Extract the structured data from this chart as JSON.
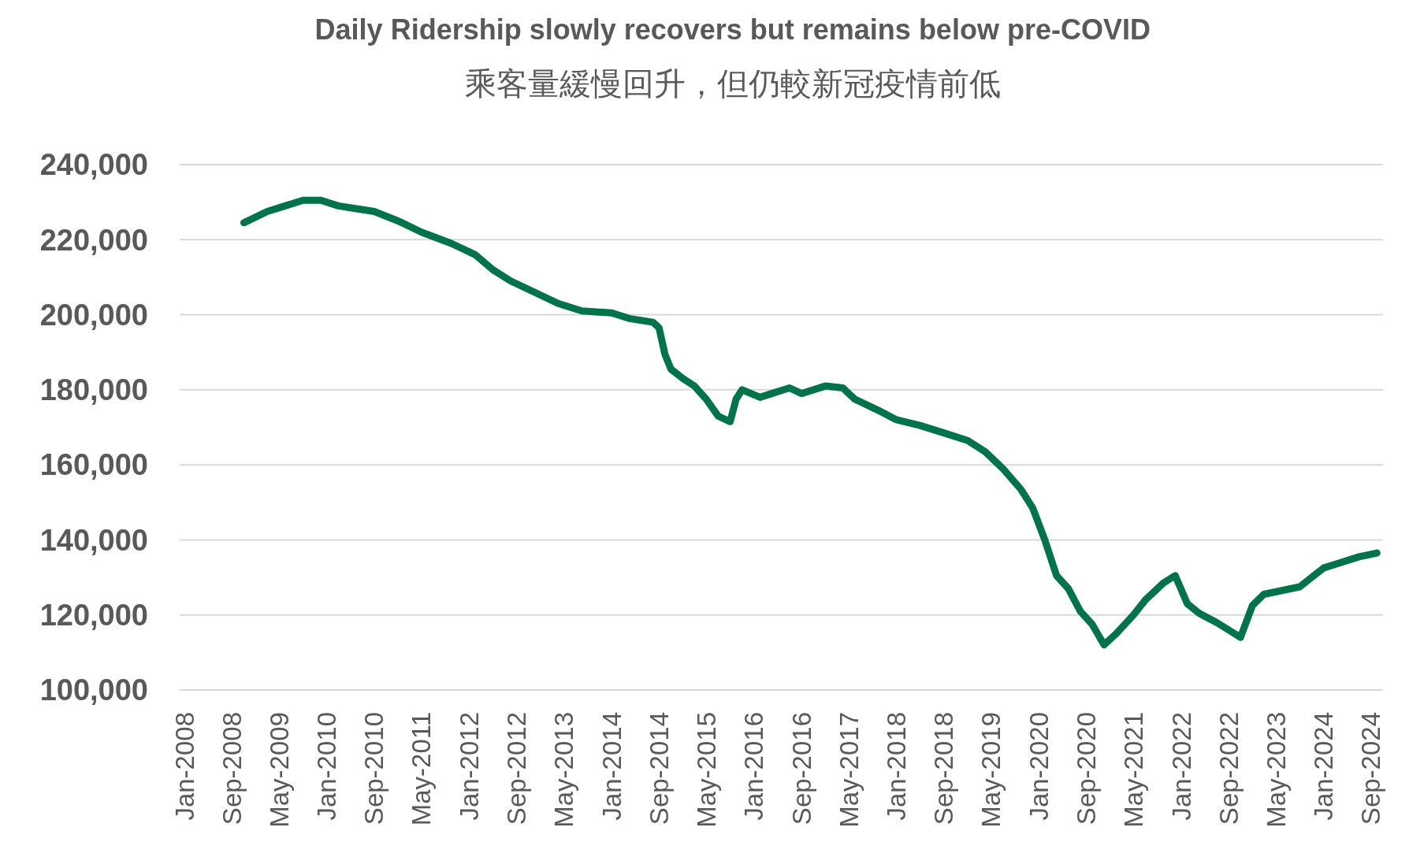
{
  "chart_data": {
    "type": "line",
    "title": "Daily Ridership slowly recovers but remains below pre-COVID",
    "subtitle": "乘客量緩慢回升，但仍較新冠疫情前低",
    "x": [
      "2008-11",
      "2009-03",
      "2009-06",
      "2009-09",
      "2009-12",
      "2010-03",
      "2010-05",
      "2010-09",
      "2011-01",
      "2011-05",
      "2011-10",
      "2012-02",
      "2012-05",
      "2012-08",
      "2012-12",
      "2013-04",
      "2013-08",
      "2014-01",
      "2014-04",
      "2014-08",
      "2014-09",
      "2014-10",
      "2014-11",
      "2015-01",
      "2015-03",
      "2015-05",
      "2015-07",
      "2015-09",
      "2015-10",
      "2015-11",
      "2016-02",
      "2016-04",
      "2016-07",
      "2016-09",
      "2017-01",
      "2017-04",
      "2017-06",
      "2017-10",
      "2018-01",
      "2018-05",
      "2018-09",
      "2019-01",
      "2019-04",
      "2019-07",
      "2019-10",
      "2019-12",
      "2020-02",
      "2020-04",
      "2020-06",
      "2020-08",
      "2020-10",
      "2020-12",
      "2021-02",
      "2021-05",
      "2021-07",
      "2021-09",
      "2021-10",
      "2021-12",
      "2022-02",
      "2022-04",
      "2022-07",
      "2022-09",
      "2022-11",
      "2023-01",
      "2023-03",
      "2023-06",
      "2023-09",
      "2023-11",
      "2024-01",
      "2024-04",
      "2024-07",
      "2024-10"
    ],
    "series": [
      {
        "color": "#00734a",
        "values": [
          224500,
          227500,
          229000,
          230500,
          230500,
          229000,
          228500,
          227500,
          225000,
          222000,
          219000,
          216000,
          212000,
          209000,
          206000,
          203000,
          201000,
          200500,
          199000,
          198000,
          196500,
          189500,
          185500,
          183000,
          181000,
          177500,
          173000,
          171500,
          177500,
          180000,
          178000,
          179000,
          180500,
          179000,
          181000,
          180500,
          177500,
          174500,
          172000,
          170500,
          168500,
          166500,
          163500,
          159000,
          153500,
          148500,
          140000,
          130500,
          127000,
          121000,
          117500,
          112000,
          115000,
          120000,
          124000,
          127000,
          128500,
          130500,
          123000,
          120500,
          118000,
          116000,
          114000,
          122500,
          125500,
          126500,
          127500,
          130000,
          132500,
          134000,
          135500,
          136500
        ]
      }
    ],
    "xlim": [
      "2008-01",
      "2024-11"
    ],
    "xticks": [
      {
        "value": "2008-01",
        "label": "Jan-2008"
      },
      {
        "value": "2008-09",
        "label": "Sep-2008"
      },
      {
        "value": "2009-05",
        "label": "May-2009"
      },
      {
        "value": "2010-01",
        "label": "Jan-2010"
      },
      {
        "value": "2010-09",
        "label": "Sep-2010"
      },
      {
        "value": "2011-05",
        "label": "May-2011"
      },
      {
        "value": "2012-01",
        "label": "Jan-2012"
      },
      {
        "value": "2012-09",
        "label": "Sep-2012"
      },
      {
        "value": "2013-05",
        "label": "May-2013"
      },
      {
        "value": "2014-01",
        "label": "Jan-2014"
      },
      {
        "value": "2014-09",
        "label": "Sep-2014"
      },
      {
        "value": "2015-05",
        "label": "May-2015"
      },
      {
        "value": "2016-01",
        "label": "Jan-2016"
      },
      {
        "value": "2016-09",
        "label": "Sep-2016"
      },
      {
        "value": "2017-05",
        "label": "May-2017"
      },
      {
        "value": "2018-01",
        "label": "Jan-2018"
      },
      {
        "value": "2018-09",
        "label": "Sep-2018"
      },
      {
        "value": "2019-05",
        "label": "May-2019"
      },
      {
        "value": "2020-01",
        "label": "Jan-2020"
      },
      {
        "value": "2020-09",
        "label": "Sep-2020"
      },
      {
        "value": "2021-05",
        "label": "May-2021"
      },
      {
        "value": "2022-01",
        "label": "Jan-2022"
      },
      {
        "value": "2022-09",
        "label": "Sep-2022"
      },
      {
        "value": "2023-05",
        "label": "May-2023"
      },
      {
        "value": "2024-01",
        "label": "Jan-2024"
      },
      {
        "value": "2024-09",
        "label": "Sep-2024"
      }
    ],
    "ylim": [
      100000,
      240000
    ],
    "yticks": [
      {
        "value": 100000,
        "label": "100,000"
      },
      {
        "value": 120000,
        "label": "120,000"
      },
      {
        "value": 140000,
        "label": "140,000"
      },
      {
        "value": 160000,
        "label": "160,000"
      },
      {
        "value": 180000,
        "label": "180,000"
      },
      {
        "value": 200000,
        "label": "200,000"
      },
      {
        "value": 220000,
        "label": "220,000"
      },
      {
        "value": 240000,
        "label": "240,000"
      }
    ],
    "grid": "y",
    "marker": "none",
    "line_style": "solid"
  }
}
